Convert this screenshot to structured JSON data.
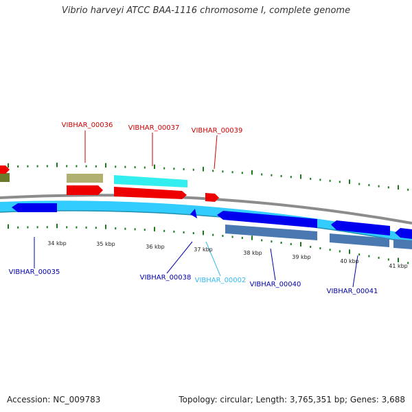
{
  "title": "Vibrio harveyi ATCC BAA-1116 chromosome I, complete genome",
  "footer": {
    "accession": "Accession: NC_009783",
    "topology": "Topology: circular; Length: 3,765,351 bp; Genes: 3,688"
  },
  "colors": {
    "forward_label": "#cc0000",
    "reverse_label": "#0000aa",
    "rna_label": "#33bbee",
    "tick": "#1a7a1a",
    "backbone": "#888888",
    "cyan_strand": "#33ccff",
    "blue_gene": "#0000ee",
    "steel_gene": "#4a78b0",
    "red_gene": "#ee0000",
    "olive_gene": "#b0b070",
    "dark_olive": "#6b7a2a",
    "aqua_gene": "#33eeee"
  },
  "scale_labels": [
    "34 kbp",
    "35 kbp",
    "36 kbp",
    "37 kbp",
    "38 kbp",
    "39 kbp",
    "40 kbp",
    "41 kbp"
  ],
  "gene_labels": [
    {
      "id": "VIBHAR_00036",
      "strand": "forward"
    },
    {
      "id": "VIBHAR_00037",
      "strand": "forward"
    },
    {
      "id": "VIBHAR_00039",
      "strand": "forward"
    },
    {
      "id": "VIBHAR_00035",
      "strand": "reverse"
    },
    {
      "id": "VIBHAR_00038",
      "strand": "reverse"
    },
    {
      "id": "VIBHAR_00002",
      "strand": "rna"
    },
    {
      "id": "VIBHAR_00040",
      "strand": "reverse"
    },
    {
      "id": "VIBHAR_00041",
      "strand": "reverse"
    }
  ]
}
